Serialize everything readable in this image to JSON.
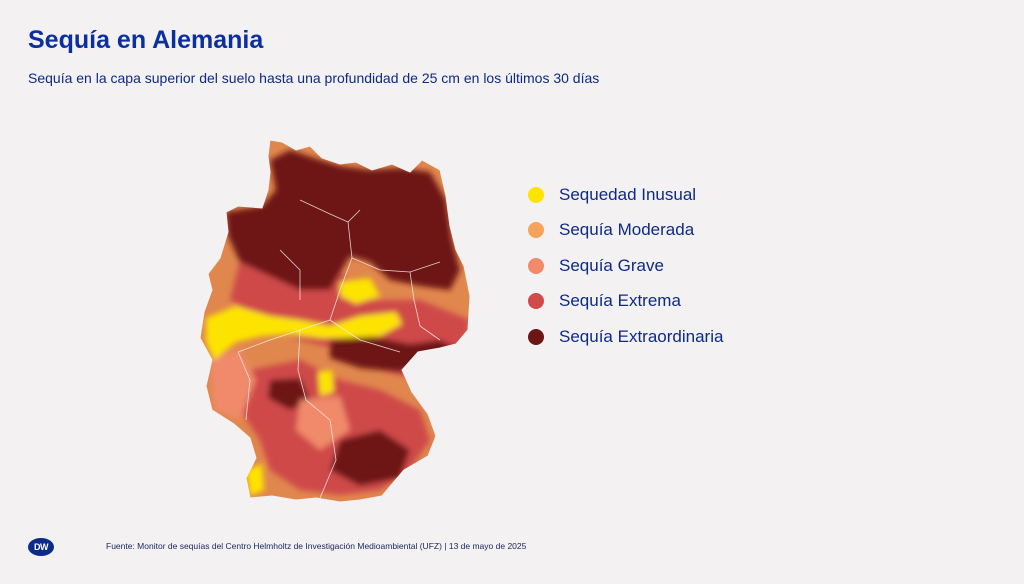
{
  "header": {
    "title": "Sequía en Alemania",
    "subtitle": "Sequía en la capa superior del suelo hasta una profundidad de 25 cm en los últimos 30 días"
  },
  "map": {
    "region": "Alemania",
    "colors": {
      "background_fill": "#e0874e",
      "border": "#f4f1f2"
    }
  },
  "legend": {
    "items": [
      {
        "label": "Sequedad Inusual",
        "color": "#fde400"
      },
      {
        "label": "Sequía Moderada",
        "color": "#f7a35c"
      },
      {
        "label": "Sequía Grave",
        "color": "#f08a6a"
      },
      {
        "label": "Sequía Extrema",
        "color": "#cf4a48"
      },
      {
        "label": "Sequía Extraordinaria",
        "color": "#6e1616"
      }
    ]
  },
  "footer": {
    "logo_text": "DW",
    "source": "Fuente: Monitor de sequías del Centro Helmholtz de Investigación Medioambiental (UFZ) | 13 de mayo de 2025"
  }
}
